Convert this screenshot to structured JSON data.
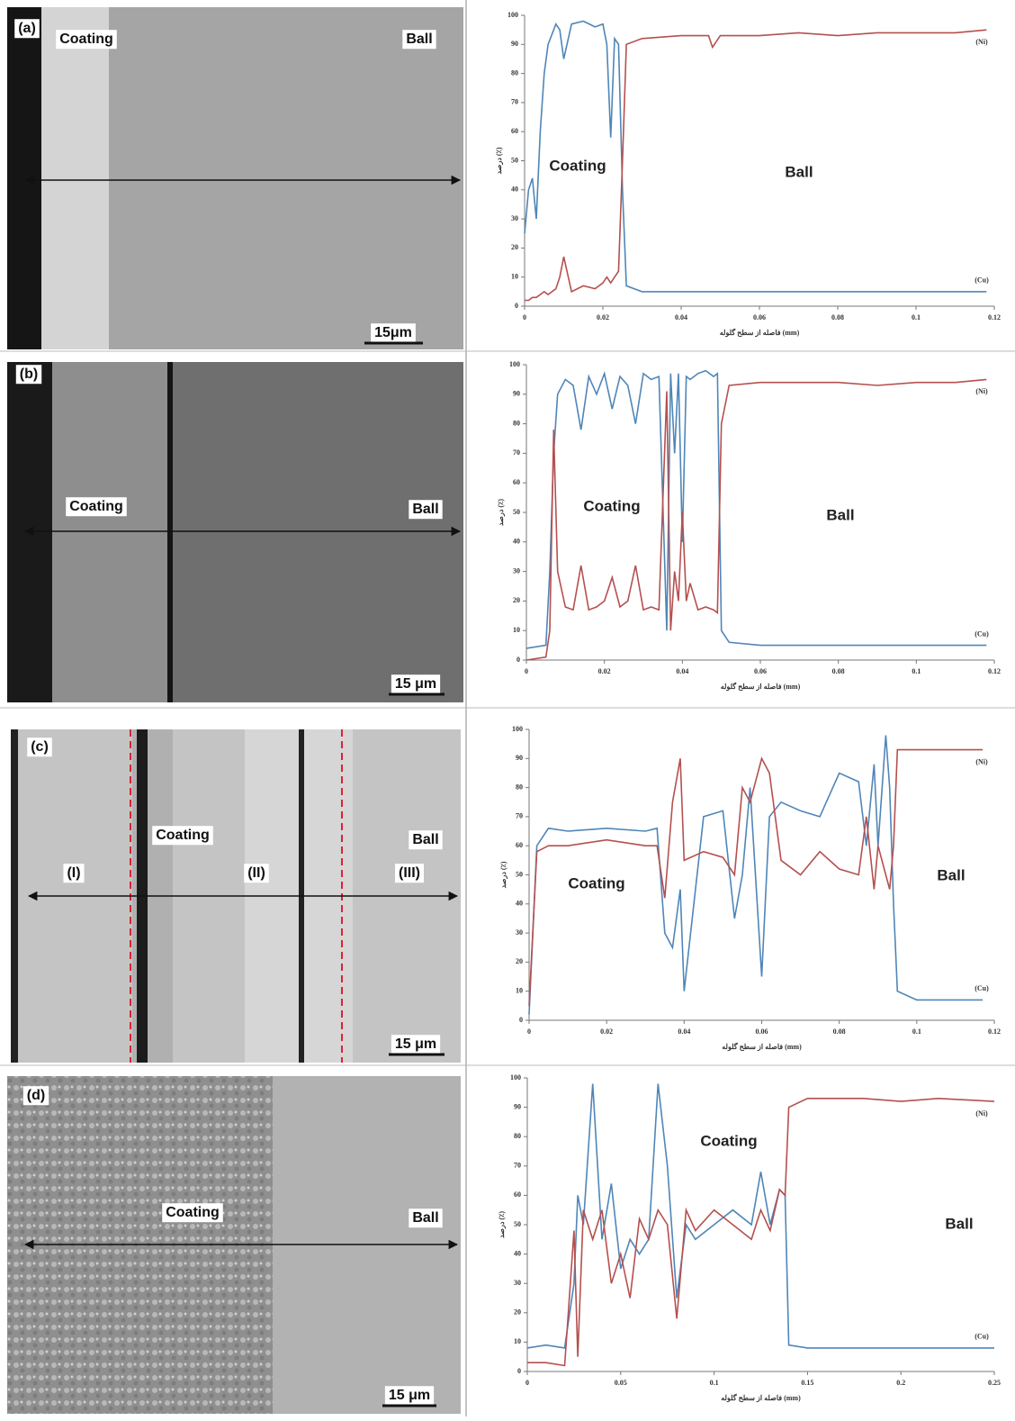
{
  "images": [
    {
      "label": "(a)",
      "texts": [
        "Coating",
        "Ball"
      ],
      "scale": "15μm"
    },
    {
      "label": "(b)",
      "texts": [
        "Coating",
        "Ball"
      ],
      "scale": "15 μm"
    },
    {
      "label": "(c)",
      "texts": [
        "Coating",
        "Ball",
        "(I)",
        "(II)",
        "(III)"
      ],
      "scale": "15 μm"
    },
    {
      "label": "(d)",
      "texts": [
        "Coating",
        "Ball"
      ],
      "scale": "15 μm"
    }
  ],
  "chart_data": [
    {
      "type": "line",
      "x_label": "فاصله از سطح گلوله (mm)",
      "y_label": "درصد (٪)",
      "annotations": [
        "Coating",
        "Ball"
      ],
      "x": [
        0,
        0.001,
        0.002,
        0.003,
        0.004,
        0.005,
        0.006,
        0.008,
        0.009,
        0.01,
        0.012,
        0.015,
        0.018,
        0.02,
        0.021,
        0.022,
        0.023,
        0.024,
        0.025,
        0.026,
        0.03,
        0.04,
        0.047,
        0.048,
        0.05,
        0.06,
        0.07,
        0.08,
        0.09,
        0.1,
        0.11,
        0.118
      ],
      "series": [
        {
          "name": "(Cu)",
          "color": "#4f86b8",
          "values": [
            25,
            40,
            44,
            30,
            60,
            80,
            90,
            97,
            95,
            85,
            97,
            98,
            96,
            97,
            90,
            58,
            92,
            90,
            40,
            7,
            5,
            5,
            5,
            5,
            5,
            5,
            5,
            5,
            5,
            5,
            5,
            5
          ]
        },
        {
          "name": "(Ni)",
          "color": "#b5504f",
          "values": [
            2,
            2,
            3,
            3,
            4,
            5,
            4,
            6,
            10,
            17,
            5,
            7,
            6,
            8,
            10,
            8,
            10,
            12,
            50,
            90,
            92,
            93,
            93,
            89,
            93,
            93,
            94,
            93,
            94,
            94,
            94,
            95
          ]
        }
      ],
      "xlim": [
        0,
        0.12
      ],
      "xticks": [
        0,
        0.02,
        0.04,
        0.06,
        0.08,
        0.1,
        0.12
      ],
      "ylim": [
        0,
        100
      ],
      "yticks": [
        0,
        10,
        20,
        30,
        40,
        50,
        60,
        70,
        80,
        90,
        100
      ]
    },
    {
      "type": "line",
      "x_label": "فاصله از سطح گلوله (mm)",
      "y_label": "درصد (٪)",
      "annotations": [
        "Coating",
        "Ball"
      ],
      "x": [
        0,
        0.005,
        0.006,
        0.007,
        0.008,
        0.01,
        0.012,
        0.014,
        0.016,
        0.018,
        0.02,
        0.022,
        0.024,
        0.026,
        0.028,
        0.03,
        0.032,
        0.034,
        0.036,
        0.037,
        0.038,
        0.039,
        0.04,
        0.041,
        0.042,
        0.044,
        0.046,
        0.048,
        0.049,
        0.05,
        0.052,
        0.06,
        0.07,
        0.08,
        0.09,
        0.1,
        0.11,
        0.118
      ],
      "series": [
        {
          "name": "(Cu)",
          "color": "#4f86b8",
          "values": [
            4,
            5,
            30,
            70,
            90,
            95,
            93,
            78,
            96,
            90,
            97,
            85,
            96,
            93,
            80,
            97,
            95,
            96,
            10,
            97,
            70,
            97,
            40,
            96,
            95,
            97,
            98,
            96,
            97,
            10,
            6,
            5,
            5,
            5,
            5,
            5,
            5,
            5
          ]
        },
        {
          "name": "(Ni)",
          "color": "#b5504f",
          "values": [
            0,
            1,
            10,
            78,
            30,
            18,
            17,
            32,
            17,
            18,
            20,
            28,
            18,
            20,
            32,
            17,
            18,
            17,
            91,
            10,
            30,
            20,
            50,
            20,
            26,
            17,
            18,
            17,
            16,
            80,
            93,
            94,
            94,
            94,
            93,
            94,
            94,
            95
          ]
        }
      ],
      "xlim": [
        0,
        0.12
      ],
      "xticks": [
        0,
        0.02,
        0.04,
        0.06,
        0.08,
        0.1,
        0.12
      ],
      "ylim": [
        0,
        100
      ],
      "yticks": [
        0,
        10,
        20,
        30,
        40,
        50,
        60,
        70,
        80,
        90,
        100
      ]
    },
    {
      "type": "line",
      "x_label": "فاصله از سطح گلوله (mm)",
      "y_label": "درصد (٪)",
      "annotations": [
        "Coating",
        "Ball"
      ],
      "x": [
        0,
        0.002,
        0.005,
        0.01,
        0.02,
        0.03,
        0.033,
        0.035,
        0.037,
        0.039,
        0.04,
        0.045,
        0.05,
        0.053,
        0.055,
        0.057,
        0.06,
        0.062,
        0.065,
        0.07,
        0.075,
        0.08,
        0.085,
        0.087,
        0.089,
        0.09,
        0.092,
        0.093,
        0.094,
        0.095,
        0.1,
        0.11,
        0.117
      ],
      "series": [
        {
          "name": "(Cu)",
          "color": "#4f86b8",
          "values": [
            2,
            60,
            66,
            65,
            66,
            65,
            66,
            30,
            25,
            45,
            10,
            70,
            72,
            35,
            50,
            80,
            15,
            70,
            75,
            72,
            70,
            85,
            82,
            60,
            88,
            60,
            98,
            80,
            40,
            10,
            7,
            7,
            7
          ]
        },
        {
          "name": "(Ni)",
          "color": "#b5504f",
          "values": [
            5,
            58,
            60,
            60,
            62,
            60,
            60,
            42,
            75,
            90,
            55,
            58,
            56,
            50,
            80,
            75,
            90,
            85,
            55,
            50,
            58,
            52,
            50,
            70,
            45,
            60,
            50,
            45,
            60,
            93,
            93,
            93,
            93
          ]
        }
      ],
      "xlim": [
        0,
        0.12
      ],
      "xticks": [
        0,
        0.02,
        0.04,
        0.06,
        0.08,
        0.1,
        0.12
      ],
      "ylim": [
        0,
        100
      ],
      "yticks": [
        0,
        10,
        20,
        30,
        40,
        50,
        60,
        70,
        80,
        90,
        100
      ]
    },
    {
      "type": "line",
      "x_label": "فاصله از سطح گلوله (mm)",
      "y_label": "درصد (٪)",
      "annotations": [
        "Coating",
        "Ball"
      ],
      "x": [
        0,
        0.01,
        0.02,
        0.025,
        0.027,
        0.03,
        0.035,
        0.04,
        0.045,
        0.05,
        0.055,
        0.06,
        0.065,
        0.07,
        0.075,
        0.08,
        0.085,
        0.09,
        0.1,
        0.11,
        0.12,
        0.125,
        0.13,
        0.135,
        0.138,
        0.14,
        0.15,
        0.18,
        0.2,
        0.22,
        0.25
      ],
      "series": [
        {
          "name": "(Cu)",
          "color": "#4f86b8",
          "values": [
            8,
            9,
            8,
            30,
            60,
            50,
            98,
            45,
            64,
            35,
            45,
            40,
            45,
            98,
            70,
            25,
            50,
            45,
            50,
            55,
            50,
            68,
            50,
            62,
            60,
            9,
            8,
            8,
            8,
            8,
            8
          ]
        },
        {
          "name": "(Ni)",
          "color": "#b5504f",
          "values": [
            3,
            3,
            2,
            48,
            5,
            55,
            45,
            55,
            30,
            40,
            25,
            52,
            45,
            55,
            50,
            18,
            55,
            48,
            55,
            50,
            45,
            55,
            48,
            62,
            60,
            90,
            93,
            93,
            92,
            93,
            92
          ]
        }
      ],
      "xlim": [
        0,
        0.25
      ],
      "xticks": [
        0,
        0.05,
        0.1,
        0.15,
        0.2,
        0.25
      ],
      "ylim": [
        0,
        100
      ],
      "yticks": [
        0,
        10,
        20,
        30,
        40,
        50,
        60,
        70,
        80,
        90,
        100
      ]
    }
  ]
}
